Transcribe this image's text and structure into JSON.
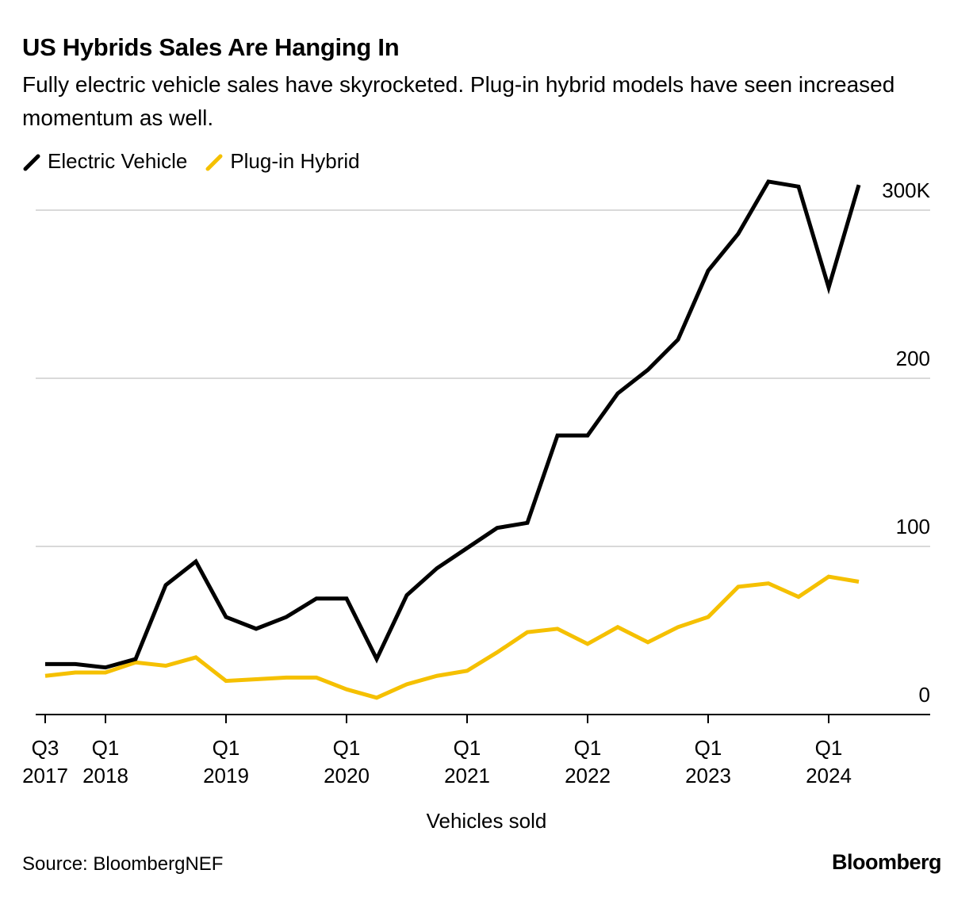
{
  "chart_data": {
    "type": "line",
    "title": "US Hybrids Sales Are Hanging In",
    "subtitle": "Fully electric vehicle sales have skyrocketed. Plug-in hybrid models have seen increased momentum as well.",
    "x_label": "Vehicles sold",
    "source": "Source: BloombergNEF",
    "brand": "Bloomberg",
    "categories": [
      "Q3\n2017",
      null,
      "Q1\n2018",
      null,
      null,
      null,
      "Q1\n2019",
      null,
      null,
      null,
      "Q1\n2020",
      null,
      null,
      null,
      "Q1\n2021",
      null,
      null,
      null,
      "Q1\n2022",
      null,
      null,
      null,
      "Q1\n2023",
      null,
      null,
      null,
      "Q1\n2024",
      null
    ],
    "series": [
      {
        "name": "Electric Vehicle",
        "color": "#000000",
        "values": [
          30,
          30,
          28,
          33,
          77,
          91,
          58,
          51,
          58,
          69,
          69,
          33,
          71,
          87,
          99,
          111,
          114,
          166,
          166,
          191,
          205,
          223,
          264,
          286,
          317,
          314,
          254,
          315
        ]
      },
      {
        "name": "Plug-in Hybrid",
        "color": "#f5c000",
        "values": [
          23,
          25,
          25,
          31,
          29,
          34,
          20,
          21,
          22,
          22,
          15,
          10,
          18,
          23,
          26,
          37,
          49,
          51,
          42,
          52,
          43,
          52,
          58,
          76,
          78,
          70,
          82,
          79
        ]
      }
    ],
    "ylim": [
      0,
      320
    ],
    "yticks": [
      0,
      100,
      200,
      {
        "value": 300,
        "label": "300K"
      }
    ],
    "grid": true
  }
}
